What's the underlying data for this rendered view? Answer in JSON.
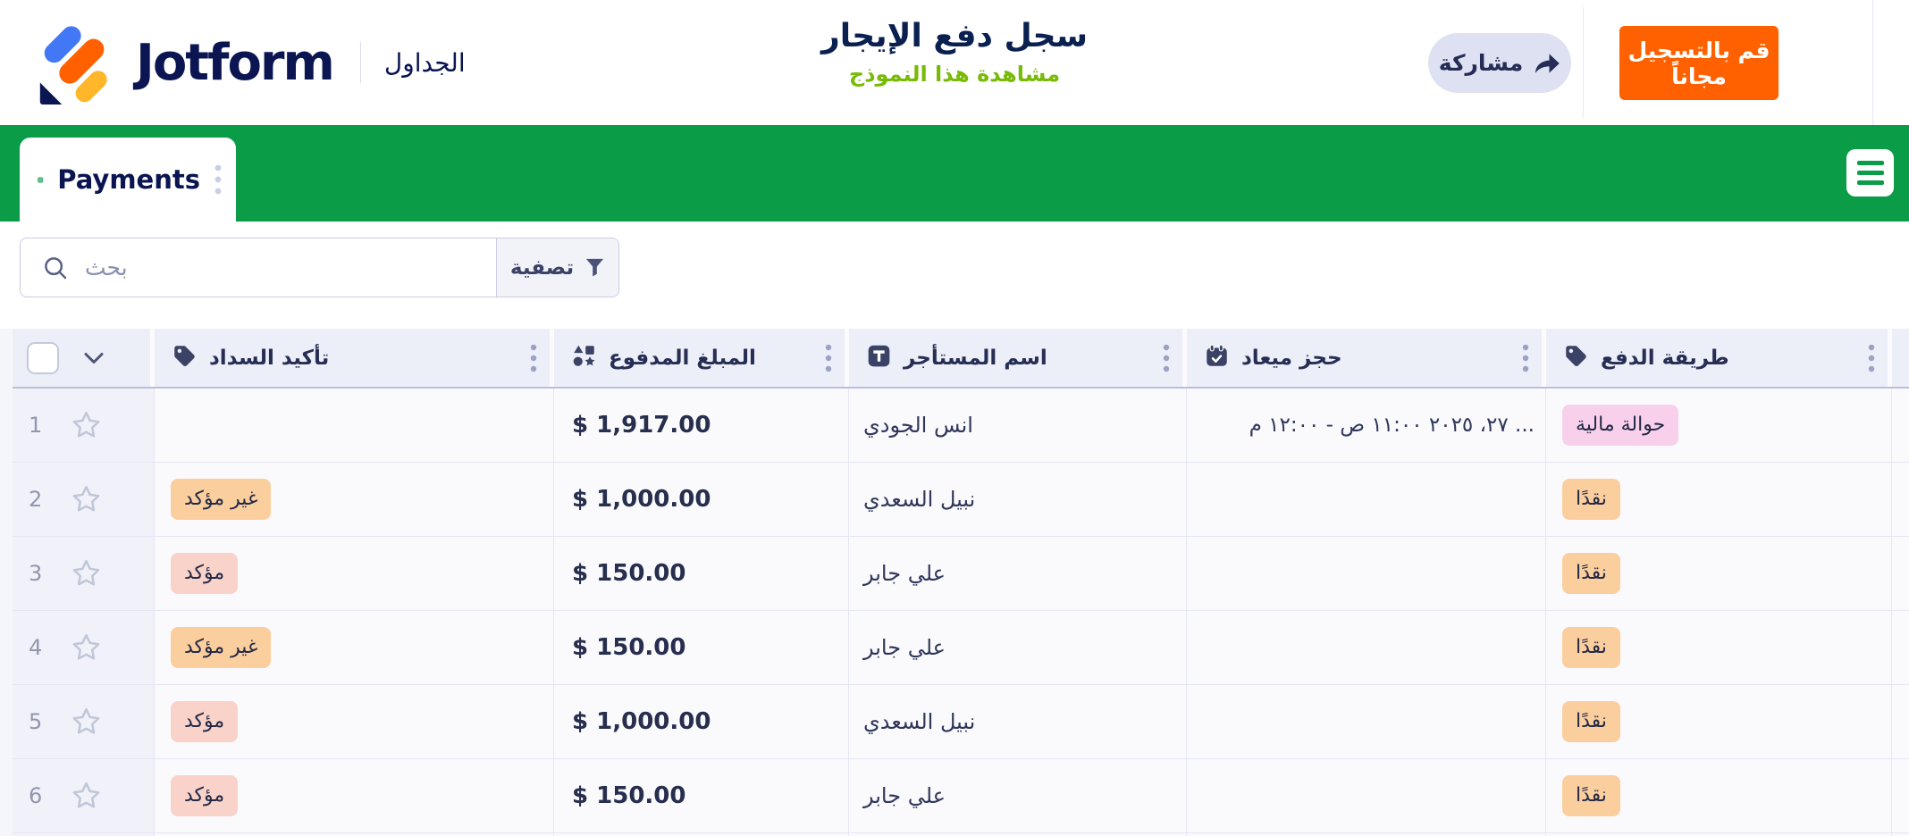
{
  "colors": {
    "brand_green": "#0A9C47",
    "brand_orange": "#FF6100",
    "navy": "#0A1551",
    "link_green": "#78BB07",
    "badge_orange": "#FBCE9D",
    "badge_salmon": "#F9D2C9",
    "badge_pink": "#F9D0EB"
  },
  "header": {
    "logo_text": "Jotform",
    "product_label": "الجداول",
    "form_title": "سجل دفع الإيجار",
    "view_form_link": "مشاهدة هذا النموذج",
    "share_label": "مشاركة",
    "signup_label": "قم بالتسجيل مجاناً"
  },
  "tabbar": {
    "tab_label": "Payments"
  },
  "toolbar": {
    "search_placeholder": "بحث",
    "filter_label": "تصفية"
  },
  "table": {
    "columns": [
      {
        "key": "confirm",
        "label": "تأكيد السداد",
        "icon": "tag-icon"
      },
      {
        "key": "amount",
        "label": "المبلغ المدفوع",
        "icon": "shapes-icon"
      },
      {
        "key": "tenant",
        "label": "اسم المستأجر",
        "icon": "text-icon"
      },
      {
        "key": "appt",
        "label": "حجز ميعاد",
        "icon": "calendar-check-icon"
      },
      {
        "key": "method",
        "label": "طريقة الدفع",
        "icon": "tag-icon"
      }
    ],
    "rows": [
      {
        "num": "1",
        "confirm": null,
        "amount": "$ 1,917.00",
        "tenant": "انس الجودي",
        "appt": "... ٢٧، ٢٠٢٥ ١١:٠٠ ص - ١٢:٠٠ م",
        "method": {
          "label": "حوالة مالية",
          "color": "pink"
        }
      },
      {
        "num": "2",
        "confirm": {
          "label": "غير مؤكد",
          "color": "orange"
        },
        "amount": "$ 1,000.00",
        "tenant": "نبيل السعدي",
        "appt": "",
        "method": {
          "label": "نقدًا",
          "color": "orange"
        }
      },
      {
        "num": "3",
        "confirm": {
          "label": "مؤكد",
          "color": "salmon"
        },
        "amount": "$ 150.00",
        "tenant": "علي جابر",
        "appt": "",
        "method": {
          "label": "نقدًا",
          "color": "orange"
        }
      },
      {
        "num": "4",
        "confirm": {
          "label": "غير مؤكد",
          "color": "orange"
        },
        "amount": "$ 150.00",
        "tenant": "علي جابر",
        "appt": "",
        "method": {
          "label": "نقدًا",
          "color": "orange"
        }
      },
      {
        "num": "5",
        "confirm": {
          "label": "مؤكد",
          "color": "salmon"
        },
        "amount": "$ 1,000.00",
        "tenant": "نبيل السعدي",
        "appt": "",
        "method": {
          "label": "نقدًا",
          "color": "orange"
        }
      },
      {
        "num": "6",
        "confirm": {
          "label": "مؤكد",
          "color": "salmon"
        },
        "amount": "$ 150.00",
        "tenant": "علي جابر",
        "appt": "",
        "method": {
          "label": "نقدًا",
          "color": "orange"
        }
      }
    ]
  }
}
